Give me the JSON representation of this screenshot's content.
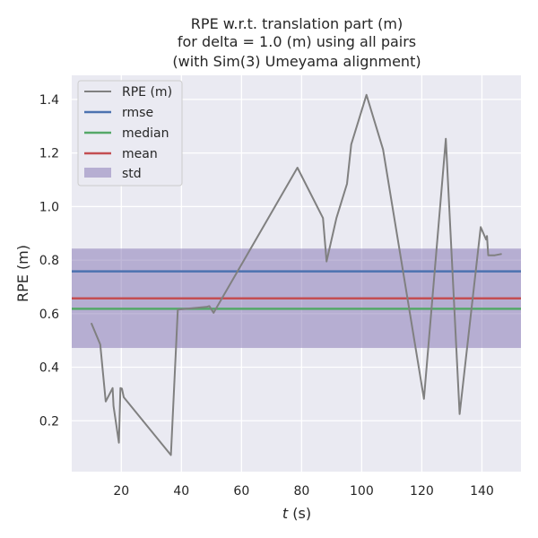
{
  "chart_data": {
    "type": "line",
    "title": [
      "RPE w.r.t. translation part (m)",
      "for delta = 1.0 (m) using all pairs",
      "(with Sim(3) Umeyama alignment)"
    ],
    "xlabel_var": "t",
    "xlabel_unit": " (s)",
    "ylabel": "RPE (m)",
    "xlim": [
      3.5,
      153
    ],
    "ylim": [
      0.01,
      1.49
    ],
    "xticks": [
      20,
      40,
      60,
      80,
      100,
      120,
      140
    ],
    "yticks": [
      0.2,
      0.4,
      0.6,
      0.8,
      1.0,
      1.2,
      1.4
    ],
    "xtick_labels": [
      "20",
      "40",
      "60",
      "80",
      "100",
      "120",
      "140"
    ],
    "ytick_labels": [
      "0.2",
      "0.4",
      "0.6",
      "0.8",
      "1.0",
      "1.2",
      "1.4"
    ],
    "grid": true,
    "legend_placement": "upper-left",
    "series": [
      {
        "name": "RPE (m)",
        "color": "#808080",
        "x": [
          10.0,
          13.0,
          14.8,
          17.1,
          17.4,
          19.2,
          19.7,
          20.2,
          20.8,
          36.5,
          36.7,
          38.8,
          48.3,
          49.3,
          50.7,
          78.6,
          87.1,
          88.3,
          91.6,
          95.1,
          96.5,
          101.6,
          107.1,
          120.7,
          128.0,
          132.6,
          139.6,
          141.4,
          141.7,
          142.1,
          142.4,
          144.3,
          146.6
        ],
        "y": [
          0.565,
          0.485,
          0.272,
          0.322,
          0.255,
          0.118,
          0.322,
          0.32,
          0.288,
          0.072,
          0.12,
          0.615,
          0.625,
          0.628,
          0.603,
          1.145,
          0.957,
          0.795,
          0.957,
          1.085,
          1.232,
          1.417,
          1.213,
          0.282,
          1.253,
          0.225,
          0.923,
          0.877,
          0.89,
          0.818,
          0.818,
          0.818,
          0.823
        ]
      }
    ],
    "rmse": {
      "name": "rmse",
      "value": 0.758,
      "color": "#4c72b0"
    },
    "median": {
      "name": "median",
      "value": 0.618,
      "color": "#55a868"
    },
    "mean": {
      "name": "mean",
      "value": 0.657,
      "color": "#c44e52"
    },
    "std": {
      "name": "std",
      "low": 0.472,
      "high": 0.843,
      "color": "#8172b2"
    }
  }
}
